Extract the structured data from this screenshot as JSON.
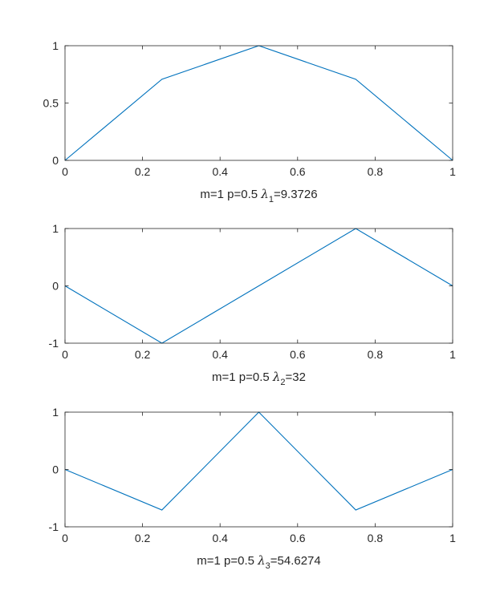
{
  "chart_data": [
    {
      "type": "line",
      "x": [
        0,
        0.25,
        0.5,
        0.75,
        1
      ],
      "series": [
        {
          "values": [
            0,
            0.7071,
            1,
            0.7071,
            0
          ],
          "color": "#0072BD"
        }
      ],
      "xlim": [
        0,
        1
      ],
      "ylim": [
        0,
        1
      ],
      "xticks": [
        0,
        0.2,
        0.4,
        0.6,
        0.8,
        1
      ],
      "xtick_labels": [
        "0",
        "0.2",
        "0.4",
        "0.6",
        "0.8",
        "1"
      ],
      "yticks": [
        0,
        0.5,
        1
      ],
      "ytick_labels": [
        "0",
        "0.5",
        "1"
      ],
      "xlabel": {
        "prefix": "m=1 p=0.5 ",
        "symbol": "λ",
        "subscript": "1",
        "suffix": "=9.3726"
      },
      "grid": false,
      "box": true
    },
    {
      "type": "line",
      "x": [
        0,
        0.25,
        0.5,
        0.75,
        1
      ],
      "series": [
        {
          "values": [
            0,
            -1,
            0,
            1,
            0
          ],
          "color": "#0072BD"
        }
      ],
      "xlim": [
        0,
        1
      ],
      "ylim": [
        -1,
        1
      ],
      "xticks": [
        0,
        0.2,
        0.4,
        0.6,
        0.8,
        1
      ],
      "xtick_labels": [
        "0",
        "0.2",
        "0.4",
        "0.6",
        "0.8",
        "1"
      ],
      "yticks": [
        -1,
        0,
        1
      ],
      "ytick_labels": [
        "-1",
        "0",
        "1"
      ],
      "xlabel": {
        "prefix": "m=1 p=0.5 ",
        "symbol": "λ",
        "subscript": "2",
        "suffix": "=32"
      },
      "grid": false,
      "box": true
    },
    {
      "type": "line",
      "x": [
        0,
        0.25,
        0.5,
        0.75,
        1
      ],
      "series": [
        {
          "values": [
            0,
            -0.7071,
            1,
            -0.7071,
            0
          ],
          "color": "#0072BD"
        }
      ],
      "xlim": [
        0,
        1
      ],
      "ylim": [
        -1,
        1
      ],
      "xticks": [
        0,
        0.2,
        0.4,
        0.6,
        0.8,
        1
      ],
      "xtick_labels": [
        "0",
        "0.2",
        "0.4",
        "0.6",
        "0.8",
        "1"
      ],
      "yticks": [
        -1,
        0,
        1
      ],
      "ytick_labels": [
        "-1",
        "0",
        "1"
      ],
      "xlabel": {
        "prefix": "m=1 p=0.5 ",
        "symbol": "λ",
        "subscript": "3",
        "suffix": "=54.6274"
      },
      "grid": false,
      "box": true
    }
  ]
}
